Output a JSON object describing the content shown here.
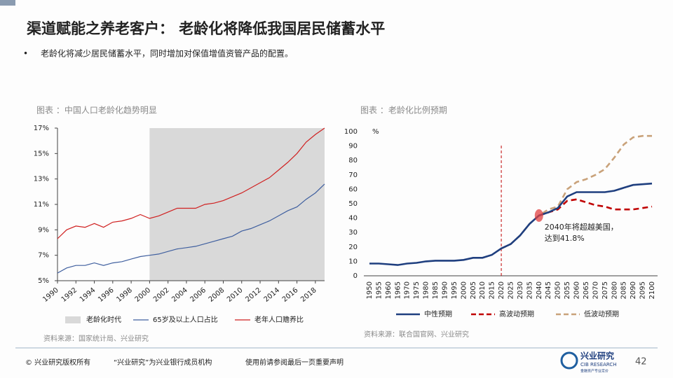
{
  "header": {
    "title": "渠道赋能之养老客户： 老龄化将降低我国居民储蓄水平",
    "bullet": "老龄化将减少居民储蓄水平，同时增加对保值增值资管产品的配置。"
  },
  "chart_data": [
    {
      "type": "line",
      "title": "图表 ：中国人口老龄化趋势明显",
      "source": "资料来源：国家统计局、兴业研究",
      "x": [
        1990,
        1991,
        1992,
        1993,
        1994,
        1995,
        1996,
        1997,
        1998,
        1999,
        2000,
        2001,
        2002,
        2003,
        2004,
        2005,
        2006,
        2007,
        2008,
        2009,
        2010,
        2011,
        2012,
        2013,
        2014,
        2015,
        2016,
        2017,
        2018,
        2019
      ],
      "xlim": [
        1990,
        2019
      ],
      "xticks": [
        1990,
        1992,
        1994,
        1996,
        1998,
        2000,
        2002,
        2004,
        2006,
        2008,
        2010,
        2012,
        2014,
        2016,
        2018
      ],
      "ylim": [
        5,
        17
      ],
      "yticks": [
        {
          "value": 5,
          "label": "5%"
        },
        {
          "value": 7,
          "label": "7%"
        },
        {
          "value": 9,
          "label": "9%"
        },
        {
          "value": 11,
          "label": "11%"
        },
        {
          "value": 13,
          "label": "13%"
        },
        {
          "value": 15,
          "label": "15%"
        },
        {
          "value": 17,
          "label": "17%"
        }
      ],
      "shade": {
        "name": "老龄化时代",
        "from": 2000,
        "to": 2019,
        "color": "#d9d9d9"
      },
      "series": [
        {
          "name": "65岁及以上人口占比",
          "color": "#3f5f9f",
          "values": [
            5.6,
            6.0,
            6.2,
            6.2,
            6.4,
            6.2,
            6.4,
            6.5,
            6.7,
            6.9,
            7.0,
            7.1,
            7.3,
            7.5,
            7.6,
            7.7,
            7.9,
            8.1,
            8.3,
            8.5,
            8.9,
            9.1,
            9.4,
            9.7,
            10.1,
            10.5,
            10.8,
            11.4,
            11.9,
            12.6
          ]
        },
        {
          "name": "老年人口赡养比",
          "color": "#d02020",
          "values": [
            8.3,
            9.0,
            9.3,
            9.2,
            9.5,
            9.2,
            9.6,
            9.7,
            9.9,
            10.2,
            9.9,
            10.1,
            10.4,
            10.7,
            10.7,
            10.7,
            11.0,
            11.1,
            11.3,
            11.6,
            11.9,
            12.3,
            12.7,
            13.1,
            13.7,
            14.3,
            15.0,
            15.9,
            16.5,
            17.0
          ]
        }
      ]
    },
    {
      "type": "line",
      "title": "图表 ：老龄化比例预期",
      "source": "资料来源：联合国官网、兴业研究",
      "y_label": "%",
      "categories": [
        "1950",
        "1955",
        "1960",
        "1965",
        "1970",
        "1975",
        "1980",
        "1985",
        "1990",
        "1995",
        "2000",
        "2005",
        "2010",
        "2015",
        "2020",
        "2025",
        "2030",
        "2035",
        "2040",
        "2045",
        "2050",
        "2055",
        "2060",
        "2065",
        "2070",
        "2075",
        "2080",
        "2085",
        "2090",
        "2095",
        "2100"
      ],
      "ylim": [
        0,
        100
      ],
      "yticks": [
        0,
        10,
        20,
        30,
        40,
        50,
        60,
        70,
        80,
        90,
        100
      ],
      "vline": "2020",
      "annotation": {
        "text": [
          "2040年将超越美国，",
          "达到41.8%"
        ],
        "at": "2040",
        "value": 41.8
      },
      "series": [
        {
          "name": "低波动预期",
          "color": "#c9a27a",
          "dash": true,
          "values": [
            null,
            null,
            null,
            null,
            null,
            null,
            null,
            null,
            null,
            null,
            null,
            null,
            null,
            null,
            19,
            22,
            28,
            36,
            41.8,
            46,
            48,
            60,
            65,
            67,
            70,
            74,
            82,
            91,
            96,
            97,
            97
          ]
        },
        {
          "name": "高波动预期",
          "color": "#c00000",
          "dash": true,
          "values": [
            null,
            null,
            null,
            null,
            null,
            null,
            null,
            null,
            null,
            null,
            null,
            null,
            null,
            null,
            null,
            null,
            null,
            null,
            41.8,
            44,
            46,
            52,
            53,
            51,
            49,
            48,
            46,
            46,
            46,
            47,
            48
          ]
        },
        {
          "name": "中性预期",
          "color": "#1f3f7f",
          "values": [
            8.5,
            8.5,
            8,
            7.5,
            8.5,
            9,
            10,
            10.5,
            10.5,
            10.5,
            11,
            12.5,
            12.5,
            14.5,
            19,
            22,
            28,
            36,
            41.8,
            44,
            47,
            55,
            58,
            58,
            58,
            58,
            59,
            61,
            63,
            63.5,
            64
          ]
        }
      ]
    }
  ],
  "footer": {
    "copyright": "© 兴业研究版权所有",
    "member": "“兴业研究”为兴业银行成员机构",
    "notice": "使用前请参阅最后一页重要声明",
    "logo_cn": "兴业研究",
    "logo_en": "CIB RESEARCH",
    "logo_sub": "金融资产专业定价",
    "page": "42"
  }
}
